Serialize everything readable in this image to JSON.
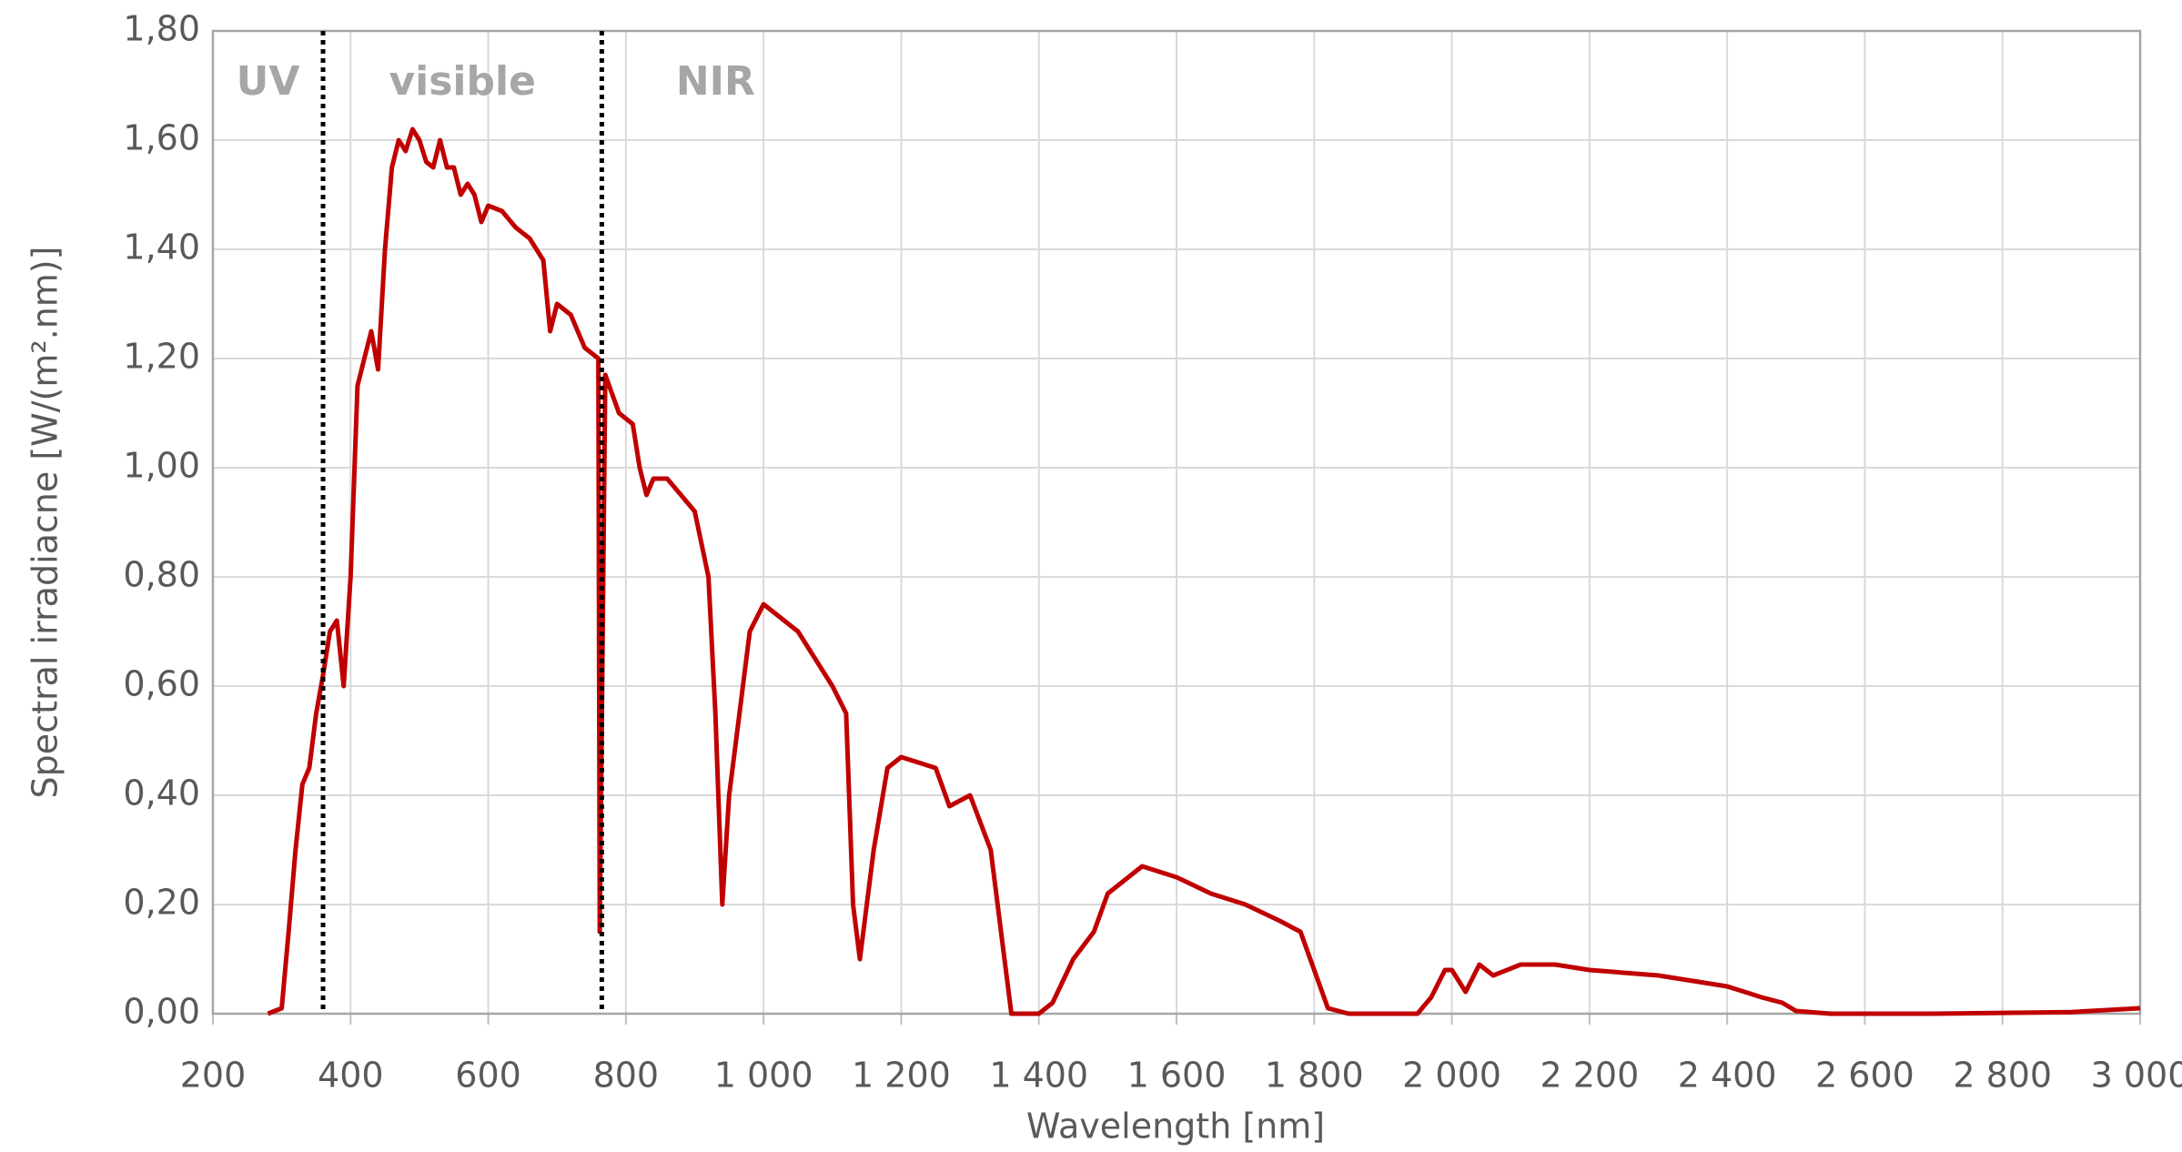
{
  "chart_data": {
    "type": "line",
    "xlabel": "Wavelength [nm]",
    "ylabel": "Spectral irradiacne [W/(m².nm)]",
    "annotations": [
      "UV",
      "visible",
      "NIR"
    ],
    "reference_lines": [
      360,
      765
    ],
    "x": [
      280,
      300,
      310,
      320,
      330,
      340,
      350,
      360,
      370,
      380,
      390,
      400,
      410,
      420,
      430,
      440,
      450,
      460,
      470,
      480,
      490,
      500,
      510,
      520,
      530,
      540,
      550,
      560,
      570,
      580,
      590,
      600,
      620,
      640,
      660,
      680,
      690,
      700,
      720,
      740,
      760,
      762,
      770,
      790,
      810,
      820,
      830,
      840,
      860,
      880,
      900,
      920,
      930,
      940,
      950,
      960,
      980,
      1000,
      1050,
      1100,
      1120,
      1130,
      1140,
      1160,
      1180,
      1200,
      1250,
      1270,
      1300,
      1330,
      1350,
      1360,
      1400,
      1420,
      1450,
      1480,
      1500,
      1550,
      1600,
      1650,
      1700,
      1750,
      1780,
      1800,
      1820,
      1850,
      1950,
      1970,
      1990,
      2000,
      2020,
      2040,
      2060,
      2100,
      2150,
      2200,
      2300,
      2400,
      2450,
      2480,
      2500,
      2550,
      2700,
      2900,
      3000
    ],
    "series": [
      {
        "color": "#c00000",
        "values": [
          0,
          0.01,
          0.15,
          0.3,
          0.42,
          0.45,
          0.55,
          0.62,
          0.7,
          0.72,
          0.6,
          0.8,
          1.15,
          1.2,
          1.25,
          1.18,
          1.4,
          1.55,
          1.6,
          1.58,
          1.62,
          1.6,
          1.56,
          1.55,
          1.6,
          1.55,
          1.55,
          1.5,
          1.52,
          1.5,
          1.45,
          1.48,
          1.47,
          1.44,
          1.42,
          1.38,
          1.25,
          1.3,
          1.28,
          1.22,
          1.2,
          0.15,
          1.17,
          1.1,
          1.08,
          1.0,
          0.95,
          0.98,
          0.98,
          0.95,
          0.92,
          0.8,
          0.55,
          0.2,
          0.4,
          0.5,
          0.7,
          0.75,
          0.7,
          0.6,
          0.55,
          0.2,
          0.1,
          0.3,
          0.45,
          0.47,
          0.45,
          0.38,
          0.4,
          0.3,
          0.1,
          0,
          0,
          0.02,
          0.1,
          0.15,
          0.22,
          0.27,
          0.25,
          0.22,
          0.2,
          0.17,
          0.15,
          0.08,
          0.01,
          0,
          0,
          0.03,
          0.08,
          0.08,
          0.04,
          0.09,
          0.07,
          0.09,
          0.09,
          0.08,
          0.07,
          0.05,
          0.03,
          0.02,
          0.005,
          0,
          0,
          0.003,
          0.01
        ]
      }
    ],
    "xlim": [
      200,
      3000
    ],
    "xticks": [
      200,
      400,
      600,
      800,
      {
        "value": 1000,
        "label": "1 000"
      },
      {
        "value": 1200,
        "label": "1 200"
      },
      {
        "value": 1400,
        "label": "1 400"
      },
      {
        "value": 1600,
        "label": "1 600"
      },
      {
        "value": 1800,
        "label": "1 800"
      },
      {
        "value": 2000,
        "label": "2 000"
      },
      {
        "value": 2200,
        "label": "2 200"
      },
      {
        "value": 2400,
        "label": "2 400"
      },
      {
        "value": 2600,
        "label": "2 600"
      },
      {
        "value": 2800,
        "label": "2 800"
      },
      {
        "value": 3000,
        "label": "3 000"
      }
    ],
    "ylim": [
      0,
      1.8
    ],
    "yticks": [
      {
        "value": 0,
        "label": "0,00"
      },
      {
        "value": 0.2,
        "label": "0,20"
      },
      {
        "value": 0.4,
        "label": "0,40"
      },
      {
        "value": 0.6,
        "label": "0,60"
      },
      {
        "value": 0.8,
        "label": "0,80"
      },
      {
        "value": 1.0,
        "label": "1,00"
      },
      {
        "value": 1.2,
        "label": "1,20"
      },
      {
        "value": 1.4,
        "label": "1,40"
      },
      {
        "value": 1.6,
        "label": "1,60"
      },
      {
        "value": 1.8,
        "label": "1,80"
      }
    ],
    "grid": true
  }
}
